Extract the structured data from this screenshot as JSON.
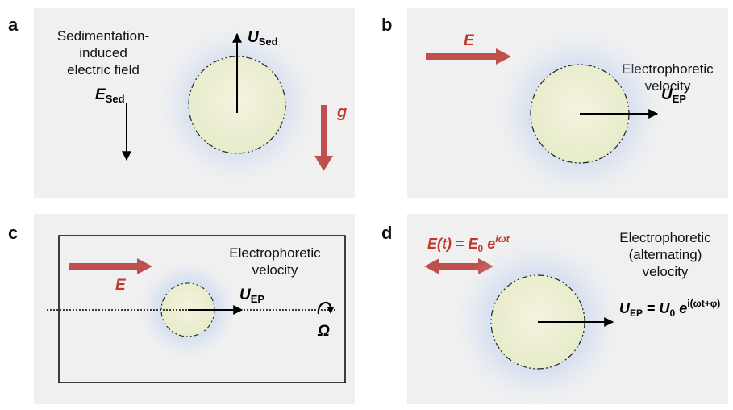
{
  "panels": {
    "a": {
      "letter": "a",
      "caption_lines": [
        "Sedimentation-",
        "induced",
        "electric field"
      ],
      "field_symbol": "E",
      "field_subscript": "Sed",
      "velocity_symbol": "U",
      "velocity_subscript": "Sed",
      "gravity_symbol": "g"
    },
    "b": {
      "letter": "b",
      "field_symbol": "E",
      "caption_lines": [
        "Electrophoretic",
        "velocity"
      ],
      "velocity_symbol": "U",
      "velocity_subscript": "EP"
    },
    "c": {
      "letter": "c",
      "field_symbol": "E",
      "caption_lines": [
        "Electrophoretic",
        "velocity"
      ],
      "velocity_symbol": "U",
      "velocity_subscript": "EP",
      "rotation_symbol": "Ω"
    },
    "d": {
      "letter": "d",
      "field_lhs": "E(t)",
      "field_eq": " = ",
      "field_amp": "E",
      "field_amp_sub": "0",
      "field_exp_base": " e",
      "field_exp": "iωt",
      "caption_lines": [
        "Electrophoretic",
        "(alternating)",
        "velocity"
      ],
      "velocity_symbol": "U",
      "velocity_subscript": "EP",
      "velocity_eq": " = ",
      "velocity_amp": "U",
      "velocity_amp_sub": "0",
      "velocity_exp_base": " e",
      "velocity_exp": "i(ωt+φ)"
    }
  },
  "colors": {
    "panel_bg": "#f0f0f0",
    "red_arrow": "#c0504d",
    "red_text": "#c0392b",
    "particle_fill": "#eef0d8",
    "halo": "#a9c4ec",
    "black": "#000000"
  }
}
